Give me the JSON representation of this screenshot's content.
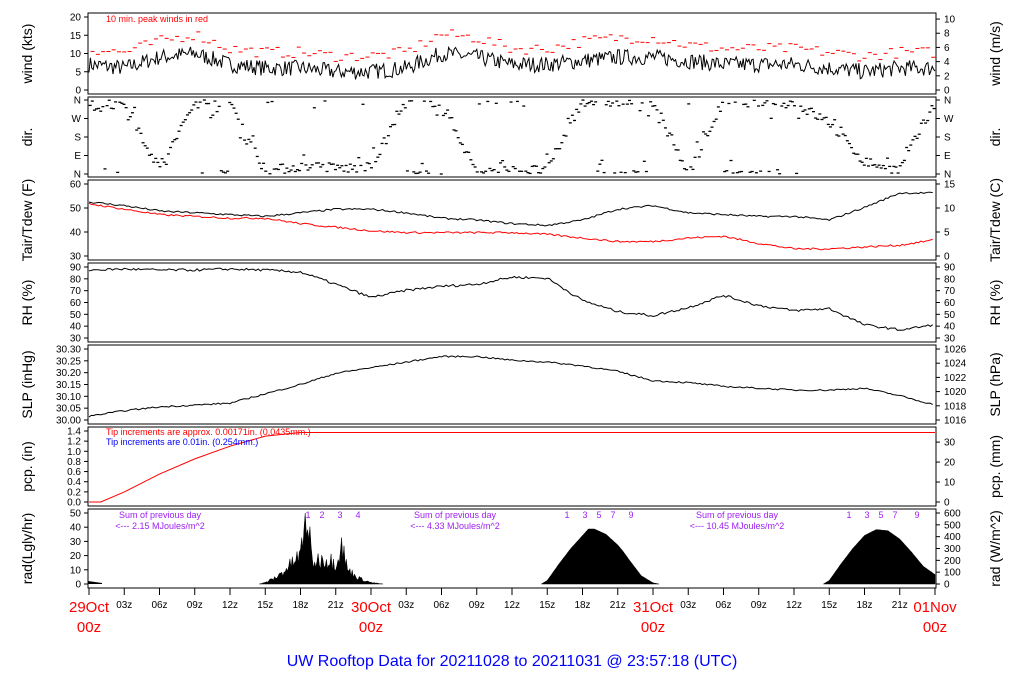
{
  "title": "UW Rooftop Data for 20211028  to  20211031 @ 23:57:18  (UTC)",
  "colors": {
    "red": "#ff0000",
    "blue": "#0000ff",
    "purple": "#a020f0",
    "black": "#000000"
  },
  "time_axis": {
    "hours_per_step": 3,
    "hour_labels": [
      "03z",
      "06z",
      "09z",
      "12z",
      "15z",
      "18z",
      "21z"
    ],
    "days": [
      {
        "date": "29Oct",
        "hour": "00z"
      },
      {
        "date": "30Oct",
        "hour": "00z"
      },
      {
        "date": "31Oct",
        "hour": "00z"
      },
      {
        "date": "01Nov",
        "hour": "00z"
      }
    ]
  },
  "chart_data": [
    {
      "type": "line",
      "name": "wind",
      "ylabel": "wind (kts)",
      "ylabel_right": "wind (m/s)",
      "ylim": [
        0,
        20
      ],
      "yticks": [
        "0",
        "5",
        "10",
        "15",
        "20"
      ],
      "yticks_right": [
        "0",
        "2",
        "4",
        "6",
        "8",
        "10"
      ],
      "annotation": "10 min. peak winds in red",
      "x_hours": [
        0,
        3,
        6,
        9,
        12,
        15,
        18,
        21,
        24,
        27,
        30,
        33,
        36,
        39,
        42,
        45,
        48,
        51,
        54,
        57,
        60,
        63,
        66,
        69,
        72
      ],
      "series": [
        {
          "name": "wind speed",
          "values": [
            7,
            6,
            9,
            10,
            7,
            6,
            6,
            5,
            5,
            6,
            10,
            9,
            7,
            7,
            8,
            9,
            9,
            8,
            7,
            7,
            7,
            6,
            5,
            6,
            6
          ]
        },
        {
          "name": "10 min peak",
          "values": [
            11,
            10,
            13,
            15,
            11,
            10,
            10,
            9,
            9,
            10,
            15,
            14,
            11,
            11,
            13,
            14,
            14,
            12,
            11,
            11,
            11,
            10,
            9,
            10,
            10
          ]
        }
      ]
    },
    {
      "type": "scatter",
      "name": "dir",
      "ylabel": "dir.",
      "ylabel_right": "dir.",
      "yticks": [
        "N",
        "E",
        "S",
        "W",
        "N"
      ],
      "x_hours": [
        0,
        3,
        6,
        9,
        12,
        15,
        18,
        21,
        24,
        27,
        30,
        33,
        36,
        39,
        42,
        45,
        48,
        51,
        54,
        57,
        60,
        63,
        66,
        69,
        72
      ],
      "dominant_deg": [
        320,
        350,
        20,
        345,
        355,
        10,
        40,
        30,
        30,
        355,
        350,
        10,
        15,
        20,
        355,
        350,
        355,
        0,
        355,
        350,
        345,
        250,
        60,
        20,
        350
      ]
    },
    {
      "type": "line",
      "name": "temp",
      "ylabel": "Tair/Tdew (F)",
      "ylabel_right": "Tair/Tdew (C)",
      "ylim": [
        25,
        65
      ],
      "yticks": [
        "30",
        "40",
        "50",
        "60"
      ],
      "yticks_right": [
        "0",
        "5",
        "10",
        "15"
      ],
      "x_hours": [
        0,
        3,
        6,
        9,
        12,
        15,
        18,
        21,
        24,
        27,
        30,
        33,
        36,
        39,
        42,
        45,
        48,
        51,
        54,
        57,
        60,
        63,
        66,
        69,
        72
      ],
      "series": [
        {
          "name": "Tair",
          "values": [
            55,
            53,
            50,
            49,
            48,
            47,
            49,
            51,
            51,
            49,
            46,
            45,
            43,
            42,
            45,
            51,
            53,
            49,
            48,
            47,
            47,
            45,
            52,
            60,
            60
          ]
        },
        {
          "name": "Tdew",
          "values": [
            54,
            51,
            48,
            47,
            46,
            46,
            43,
            41,
            39,
            38,
            38,
            38,
            38,
            37,
            35,
            33,
            33,
            35,
            36,
            32,
            29,
            29,
            30,
            31,
            34
          ]
        }
      ]
    },
    {
      "type": "line",
      "name": "rh",
      "ylabel": "RH (%)",
      "ylabel_right": "RH (%)",
      "ylim": [
        25,
        95
      ],
      "yticks": [
        "30",
        "40",
        "50",
        "60",
        "70",
        "80",
        "90"
      ],
      "yticks_right": [
        "30",
        "40",
        "50",
        "60",
        "70",
        "80",
        "90"
      ],
      "x_hours": [
        0,
        3,
        6,
        9,
        12,
        15,
        18,
        21,
        24,
        27,
        30,
        33,
        36,
        39,
        42,
        45,
        48,
        51,
        54,
        57,
        60,
        63,
        66,
        69,
        72
      ],
      "series": [
        {
          "name": "RH",
          "values": [
            92,
            93,
            92,
            92,
            93,
            92,
            90,
            78,
            65,
            72,
            76,
            78,
            85,
            84,
            62,
            51,
            47,
            55,
            67,
            57,
            52,
            54,
            38,
            33,
            38
          ]
        }
      ]
    },
    {
      "type": "line",
      "name": "slp",
      "ylabel": "SLP (inHg)",
      "ylabel_right": "SLP (hPa)",
      "ylim": [
        29.96,
        30.34
      ],
      "yticks": [
        "30.00",
        "30.05",
        "30.10",
        "30.15",
        "30.20",
        "30.25",
        "30.30"
      ],
      "yticks_right": [
        "1016",
        "1018",
        "1020",
        "1022",
        "1024",
        "1026"
      ],
      "x_hours": [
        0,
        3,
        6,
        9,
        12,
        15,
        18,
        21,
        24,
        27,
        30,
        33,
        36,
        39,
        42,
        45,
        48,
        51,
        54,
        57,
        60,
        63,
        66,
        69,
        72
      ],
      "series": [
        {
          "name": "SLP",
          "values": [
            29.98,
            30.01,
            30.03,
            30.04,
            30.05,
            30.1,
            30.15,
            30.21,
            30.24,
            30.27,
            30.3,
            30.3,
            30.28,
            30.27,
            30.25,
            30.22,
            30.17,
            30.16,
            30.14,
            30.13,
            30.12,
            30.12,
            30.13,
            30.09,
            30.04
          ]
        }
      ]
    },
    {
      "type": "line",
      "name": "pcp",
      "ylabel": "pcp. (in)",
      "ylabel_right": "pcp. (mm)",
      "ylim": [
        0,
        1.4
      ],
      "yticks": [
        "0.0",
        "0.2",
        "0.4",
        "0.6",
        "0.8",
        "1.0",
        "1.2",
        "1.4"
      ],
      "yticks_right": [
        "0",
        "10",
        "20",
        "30"
      ],
      "notes": [
        "Tip increments are approx. 0.00171in. (0.0435mm.)",
        "Tip increments are 0.01in. (0.254mm.)"
      ],
      "x_hours": [
        0,
        1,
        3,
        6,
        9,
        12,
        15,
        18,
        72
      ],
      "series": [
        {
          "name": "precip",
          "values": [
            0,
            0,
            0.2,
            0.55,
            0.85,
            1.1,
            1.3,
            1.37,
            1.37
          ]
        }
      ]
    },
    {
      "type": "area",
      "name": "rad",
      "ylabel": "rad(Lgly/hr)",
      "ylabel_right": "rad (W/m^2)",
      "ylim": [
        0,
        600
      ],
      "yticks": [
        "0",
        "10",
        "20",
        "30",
        "40",
        "50"
      ],
      "yticks_right": [
        "0",
        "100",
        "200",
        "300",
        "400",
        "500",
        "600"
      ],
      "x_hours": [
        38.5,
        39,
        40,
        41,
        42,
        42.5,
        43,
        44,
        45,
        45.5,
        46,
        47,
        48,
        48.5,
        62.5,
        63,
        64,
        65,
        66,
        67,
        68,
        69,
        70,
        71,
        72
      ],
      "series": [
        {
          "name": "solar W/m^2",
          "values": [
            0,
            30,
            170,
            300,
            410,
            465,
            465,
            420,
            330,
            270,
            200,
            70,
            10,
            0,
            0,
            30,
            170,
            300,
            410,
            460,
            450,
            380,
            270,
            150,
            80
          ]
        },
        {
          "name": "day1 Lgly/hr",
          "x_hours": [
            14.5,
            15,
            16,
            17,
            18,
            18.5,
            19,
            20,
            21,
            21.5,
            22,
            23,
            24,
            25
          ],
          "values": [
            0,
            1,
            5,
            12,
            20,
            50,
            15,
            18,
            15,
            28,
            10,
            4,
            1,
            0
          ]
        }
      ],
      "day_sums": [
        {
          "label": "Sum of previous day",
          "value": "<--- 2.15 MJoules/m^2"
        },
        {
          "label": "Sum of previous day",
          "value": "<--- 4.33 MJoules/m^2"
        },
        {
          "label": "Sum of previous day",
          "value": "<--- 10.45 MJoules/m^2"
        }
      ],
      "hour_marks": [
        [
          "1",
          "2",
          "3",
          "4"
        ],
        [
          "1",
          "3",
          "5",
          "7",
          "9"
        ],
        [
          "1",
          "3",
          "5",
          "7",
          "9"
        ]
      ]
    }
  ]
}
